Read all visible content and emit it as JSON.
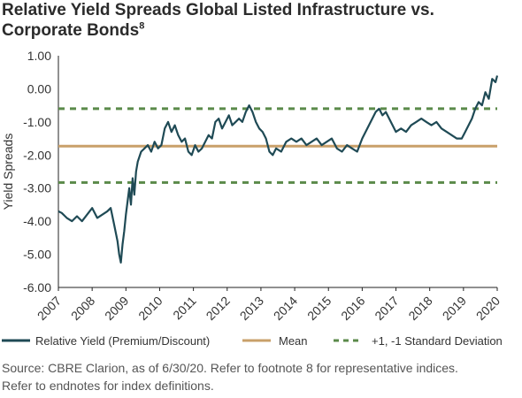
{
  "chart_data": {
    "type": "line",
    "title": "Relative Yield Spreads Global Listed Infrastructure vs. Corporate Bonds",
    "title_footnote": "8",
    "ylabel": "Yield Spreads",
    "xlabel": "",
    "ylim": [
      -6,
      1
    ],
    "xlim": [
      2007,
      2020
    ],
    "y_ticks": [
      "1.00",
      "0.00",
      "-1.00",
      "-2.00",
      "-3.00",
      "-4.00",
      "-5.00",
      "-6.00"
    ],
    "x_ticks": [
      "2007",
      "2008",
      "2009",
      "2010",
      "2011",
      "2012",
      "2013",
      "2014",
      "2015",
      "2016",
      "2017",
      "2018",
      "2019",
      "2020"
    ],
    "grid": false,
    "legend_position": "bottom",
    "colors": {
      "relative_yield": "#1f4a55",
      "mean": "#c9a06a",
      "std_dev": "#5b8a4a",
      "axis": "#222222",
      "text": "#333333"
    },
    "series": [
      {
        "name": "Relative Yield (Premium/Discount)",
        "style": "solid",
        "x": [
          2007.0,
          2007.1,
          2007.25,
          2007.4,
          2007.55,
          2007.7,
          2007.85,
          2008.0,
          2008.15,
          2008.3,
          2008.45,
          2008.55,
          2008.65,
          2008.75,
          2008.8,
          2008.85,
          2008.9,
          2008.95,
          2009.0,
          2009.05,
          2009.1,
          2009.15,
          2009.2,
          2009.25,
          2009.3,
          2009.35,
          2009.45,
          2009.55,
          2009.65,
          2009.75,
          2009.85,
          2009.95,
          2010.05,
          2010.15,
          2010.25,
          2010.35,
          2010.45,
          2010.55,
          2010.65,
          2010.75,
          2010.85,
          2010.95,
          2011.05,
          2011.15,
          2011.25,
          2011.35,
          2011.45,
          2011.55,
          2011.65,
          2011.75,
          2011.85,
          2011.95,
          2012.05,
          2012.15,
          2012.25,
          2012.35,
          2012.45,
          2012.55,
          2012.65,
          2012.75,
          2012.85,
          2012.95,
          2013.05,
          2013.15,
          2013.25,
          2013.35,
          2013.45,
          2013.6,
          2013.75,
          2013.9,
          2014.05,
          2014.2,
          2014.35,
          2014.5,
          2014.65,
          2014.8,
          2014.95,
          2015.1,
          2015.25,
          2015.4,
          2015.55,
          2015.7,
          2015.85,
          2016.0,
          2016.1,
          2016.2,
          2016.3,
          2016.4,
          2016.5,
          2016.6,
          2016.7,
          2016.8,
          2016.9,
          2017.0,
          2017.15,
          2017.3,
          2017.45,
          2017.6,
          2017.75,
          2017.9,
          2018.05,
          2018.2,
          2018.35,
          2018.5,
          2018.65,
          2018.8,
          2018.95,
          2019.05,
          2019.15,
          2019.25,
          2019.35,
          2019.45,
          2019.55,
          2019.65,
          2019.75,
          2019.85,
          2019.95,
          2020.0
        ],
        "values": [
          -3.7,
          -3.75,
          -3.9,
          -4.0,
          -3.85,
          -4.0,
          -3.8,
          -3.6,
          -3.9,
          -3.8,
          -3.7,
          -3.6,
          -4.1,
          -4.6,
          -5.0,
          -5.25,
          -4.7,
          -4.3,
          -3.8,
          -3.4,
          -3.0,
          -3.5,
          -2.7,
          -3.2,
          -2.5,
          -2.2,
          -1.9,
          -1.8,
          -1.7,
          -1.9,
          -1.6,
          -1.8,
          -1.7,
          -1.2,
          -1.0,
          -1.3,
          -1.1,
          -1.4,
          -1.6,
          -1.5,
          -1.9,
          -2.0,
          -1.7,
          -1.9,
          -1.8,
          -1.6,
          -1.4,
          -1.5,
          -1.0,
          -0.9,
          -1.2,
          -1.0,
          -0.8,
          -1.1,
          -1.0,
          -0.9,
          -1.0,
          -0.7,
          -0.5,
          -0.7,
          -1.0,
          -1.2,
          -1.3,
          -1.5,
          -1.9,
          -2.0,
          -1.8,
          -1.9,
          -1.6,
          -1.5,
          -1.6,
          -1.5,
          -1.7,
          -1.6,
          -1.5,
          -1.7,
          -1.6,
          -1.5,
          -1.8,
          -1.9,
          -1.7,
          -1.8,
          -1.9,
          -1.5,
          -1.3,
          -1.1,
          -0.9,
          -0.7,
          -0.6,
          -0.8,
          -0.7,
          -0.9,
          -1.1,
          -1.3,
          -1.2,
          -1.3,
          -1.1,
          -1.0,
          -0.9,
          -1.0,
          -1.1,
          -1.0,
          -1.2,
          -1.3,
          -1.4,
          -1.5,
          -1.5,
          -1.3,
          -1.1,
          -0.9,
          -0.6,
          -0.4,
          -0.5,
          -0.1,
          -0.3,
          0.3,
          0.2,
          0.4
        ]
      },
      {
        "name": "Mean",
        "style": "solid",
        "x": [
          2007,
          2020
        ],
        "values": [
          -1.73,
          -1.73
        ]
      },
      {
        "name": "+1, -1 Standard Deviation",
        "style": "dashed",
        "x": [
          2007,
          2020
        ],
        "values": [
          -0.6,
          -0.6
        ]
      },
      {
        "name": "+1, -1 Standard Deviation",
        "style": "dashed",
        "x": [
          2007,
          2020
        ],
        "values": [
          -2.83,
          -2.83
        ]
      }
    ]
  },
  "legend": {
    "items": [
      {
        "label": "Relative Yield (Premium/Discount)"
      },
      {
        "label": "Mean"
      },
      {
        "label": "+1, -1 Standard Deviation"
      }
    ]
  },
  "source": {
    "line1": "Source: CBRE Clarion, as of 6/30/20. Refer to footnote 8 for representative indices.",
    "line2": "Refer to endnotes for index definitions."
  }
}
